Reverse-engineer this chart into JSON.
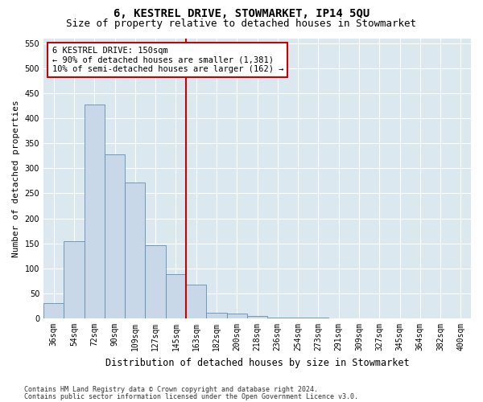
{
  "title": "6, KESTREL DRIVE, STOWMARKET, IP14 5QU",
  "subtitle": "Size of property relative to detached houses in Stowmarket",
  "xlabel": "Distribution of detached houses by size in Stowmarket",
  "ylabel": "Number of detached properties",
  "categories": [
    "36sqm",
    "54sqm",
    "72sqm",
    "90sqm",
    "109sqm",
    "127sqm",
    "145sqm",
    "163sqm",
    "182sqm",
    "200sqm",
    "218sqm",
    "236sqm",
    "254sqm",
    "273sqm",
    "291sqm",
    "309sqm",
    "327sqm",
    "345sqm",
    "364sqm",
    "382sqm",
    "400sqm"
  ],
  "values": [
    30,
    155,
    428,
    328,
    272,
    146,
    88,
    67,
    12,
    9,
    5,
    2,
    1,
    1,
    0,
    0,
    0,
    0,
    0,
    0,
    0
  ],
  "bar_color": "#c8d8e8",
  "bar_edge_color": "#6090b0",
  "vline_x_idx": 6,
  "vline_color": "#cc0000",
  "annotation_line1": "6 KESTREL DRIVE: 150sqm",
  "annotation_line2": "← 90% of detached houses are smaller (1,381)",
  "annotation_line3": "10% of semi-detached houses are larger (162) →",
  "annotation_box_color": "#ffffff",
  "annotation_box_edge": "#cc0000",
  "ylim": [
    0,
    560
  ],
  "yticks": [
    0,
    50,
    100,
    150,
    200,
    250,
    300,
    350,
    400,
    450,
    500,
    550
  ],
  "bg_color": "#dce8f0",
  "footer1": "Contains HM Land Registry data © Crown copyright and database right 2024.",
  "footer2": "Contains public sector information licensed under the Open Government Licence v3.0.",
  "title_fontsize": 10,
  "subtitle_fontsize": 9,
  "tick_fontsize": 7,
  "ylabel_fontsize": 8,
  "xlabel_fontsize": 8.5
}
